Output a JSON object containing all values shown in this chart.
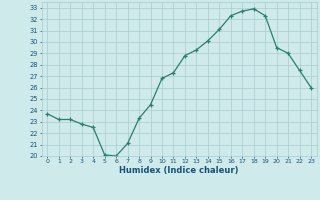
{
  "x": [
    0,
    1,
    2,
    3,
    4,
    5,
    6,
    7,
    8,
    9,
    10,
    11,
    12,
    13,
    14,
    15,
    16,
    17,
    18,
    19,
    20,
    21,
    22,
    23
  ],
  "y": [
    23.7,
    23.2,
    23.2,
    22.8,
    22.5,
    20.1,
    20.0,
    21.1,
    23.3,
    24.5,
    26.8,
    27.3,
    28.8,
    29.3,
    30.1,
    31.1,
    32.3,
    32.7,
    32.9,
    32.3,
    29.5,
    29.0,
    27.5,
    26.0
  ],
  "xlabel": "Humidex (Indice chaleur)",
  "xlim": [
    -0.5,
    23.5
  ],
  "ylim": [
    20,
    33.5
  ],
  "yticks": [
    20,
    21,
    22,
    23,
    24,
    25,
    26,
    27,
    28,
    29,
    30,
    31,
    32,
    33
  ],
  "xticks": [
    0,
    1,
    2,
    3,
    4,
    5,
    6,
    7,
    8,
    9,
    10,
    11,
    12,
    13,
    14,
    15,
    16,
    17,
    18,
    19,
    20,
    21,
    22,
    23
  ],
  "line_color": "#2e7d6e",
  "bg_color": "#ceeaea",
  "grid_color": "#aacccc",
  "text_color": "#1a5276"
}
